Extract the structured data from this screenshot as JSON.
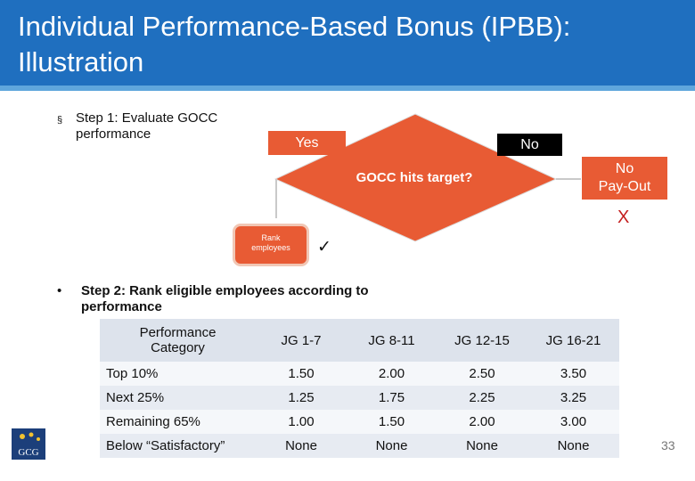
{
  "header": {
    "title_line1": "Individual Performance-Based Bonus (IPBB):",
    "title_line2": "Illustration"
  },
  "step1": {
    "bullet": "§",
    "text_line1": "Step 1:  Evaluate GOCC",
    "text_line2": "performance"
  },
  "flow": {
    "yes_label": "Yes",
    "no_label": "No",
    "decision_label": "GOCC hits target?",
    "no_payout_line1": "No",
    "no_payout_line2": "Pay-Out",
    "x_mark": "X",
    "rank_line1": "Rank",
    "rank_line2": "employees",
    "check_mark": "✓"
  },
  "step2": {
    "bullet": "•",
    "text_line1": "Step 2: Rank eligible employees according to",
    "text_line2": "performance"
  },
  "table": {
    "header_cat_line1": "Performance",
    "header_cat_line2": "Category",
    "columns": [
      "JG 1-7",
      "JG 8-11",
      "JG 12-15",
      "JG 16-21"
    ],
    "rows": [
      {
        "category": "Top 10%",
        "values": [
          "1.50",
          "2.00",
          "2.50",
          "3.50"
        ]
      },
      {
        "category": "Next 25%",
        "values": [
          "1.25",
          "1.75",
          "2.25",
          "3.25"
        ]
      },
      {
        "category": "Remaining 65%",
        "values": [
          "1.00",
          "1.50",
          "2.00",
          "3.00"
        ]
      },
      {
        "category": "Below “Satisfactory”",
        "values": [
          "None",
          "None",
          "None",
          "None"
        ]
      }
    ]
  },
  "logo_text": "GCG",
  "page_number": "33",
  "colors": {
    "header": "#1f6fbf",
    "accent": "#e85b34",
    "black_box": "#000000"
  }
}
